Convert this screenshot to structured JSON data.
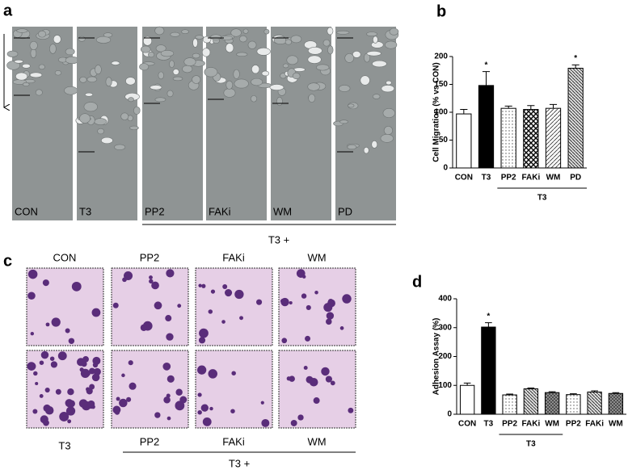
{
  "panel_a": {
    "label": "a",
    "images": [
      "CON",
      "T3",
      "PP2",
      "FAKi",
      "WM",
      "PD"
    ],
    "group_label": "T3 +"
  },
  "panel_c": {
    "label": "c",
    "top_labels": [
      "CON",
      "PP2",
      "FAKi",
      "WM"
    ],
    "bottom_labels": [
      "T3",
      "PP2",
      "FAKi",
      "WM"
    ],
    "group_label": "T3 +"
  },
  "chart_data": [
    {
      "type": "bar",
      "panel_label": "b",
      "y_label": "Cell Migration (% vs CON)",
      "categories": [
        "CON",
        "T3",
        "PP2",
        "FAKi",
        "WM",
        "PD"
      ],
      "values": [
        97,
        148,
        107,
        105,
        107,
        179
      ],
      "errors": [
        8,
        25,
        4,
        7,
        7,
        6
      ],
      "colors": [
        "#ffffff",
        "#000000",
        "#e8e8e8",
        "#bbbbbb",
        "#cccccc",
        "#aaaaaa"
      ],
      "annotations": [
        {
          "category": "T3",
          "text": "*"
        },
        {
          "category": "PD",
          "text": "*"
        }
      ],
      "group_label": "T3",
      "ylim": [
        0,
        200
      ],
      "yticks": [
        0,
        50,
        100,
        150,
        200
      ]
    },
    {
      "type": "bar",
      "panel_label": "d",
      "y_label": "Adhesion Assay (%)",
      "categories": [
        "CON",
        "T3",
        "PP2",
        "FAKi",
        "WM",
        "PP2",
        "FAKi",
        "WM"
      ],
      "values": [
        100,
        302,
        67,
        88,
        75,
        68,
        77,
        72
      ],
      "errors": [
        8,
        15,
        3,
        3,
        3,
        3,
        4,
        3
      ],
      "colors": [
        "#ffffff",
        "#000000",
        "#cccccc",
        "#999999",
        "#888888",
        "#cccccc",
        "#999999",
        "#888888"
      ],
      "annotations": [
        {
          "category": "T3",
          "text": "*"
        }
      ],
      "group_label": "T3",
      "ylim": [
        0,
        400
      ],
      "yticks": [
        0,
        100,
        200,
        300,
        400
      ]
    }
  ]
}
